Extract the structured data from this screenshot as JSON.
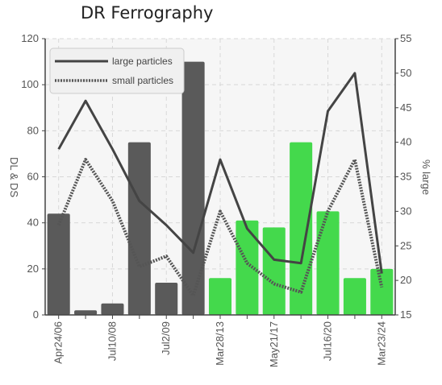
{
  "chart_data": {
    "type": "bar",
    "title": "DR Ferrography",
    "categories": [
      "Apr24/06",
      "",
      "Jul10/08",
      "",
      "Jul2/09",
      "",
      "Mar28/13",
      "",
      "May21/17",
      "",
      "Jul16/20",
      "",
      "Mar23/24"
    ],
    "y_left_label": "DL & DS",
    "y_right_label": "% large",
    "y_left_lim": [
      0,
      120
    ],
    "y_right_lim": [
      15,
      55
    ],
    "y_left_ticks": [
      0,
      20,
      40,
      60,
      80,
      100,
      120
    ],
    "y_right_ticks": [
      15,
      20,
      25,
      30,
      35,
      40,
      45,
      50,
      55
    ],
    "grid": true,
    "legend_position": "top-left",
    "colors": {
      "dark_bar": "#5a5a5a",
      "green_bar": "#44d94c",
      "line": "#444444",
      "grid": "#d8d8d8"
    },
    "bar_series": {
      "values": [
        44,
        2,
        5,
        75,
        14,
        110,
        16,
        41,
        38,
        75,
        45,
        16,
        20
      ],
      "color_groups": [
        "dark",
        "dark",
        "dark",
        "dark",
        "dark",
        "dark",
        "green",
        "green",
        "green",
        "green",
        "green",
        "green",
        "green"
      ]
    },
    "series": [
      {
        "name": "large particles",
        "axis": "right",
        "style": "solid",
        "values": [
          39,
          46,
          39,
          31.5,
          28,
          24,
          37.5,
          27.5,
          23,
          22.5,
          44.5,
          50,
          21
        ]
      },
      {
        "name": "small particles",
        "axis": "right",
        "style": "dotted",
        "values": [
          28,
          37.5,
          31.5,
          22,
          23.5,
          17.8,
          30,
          22.5,
          19.5,
          18.3,
          30,
          37.5,
          19
        ]
      }
    ]
  }
}
